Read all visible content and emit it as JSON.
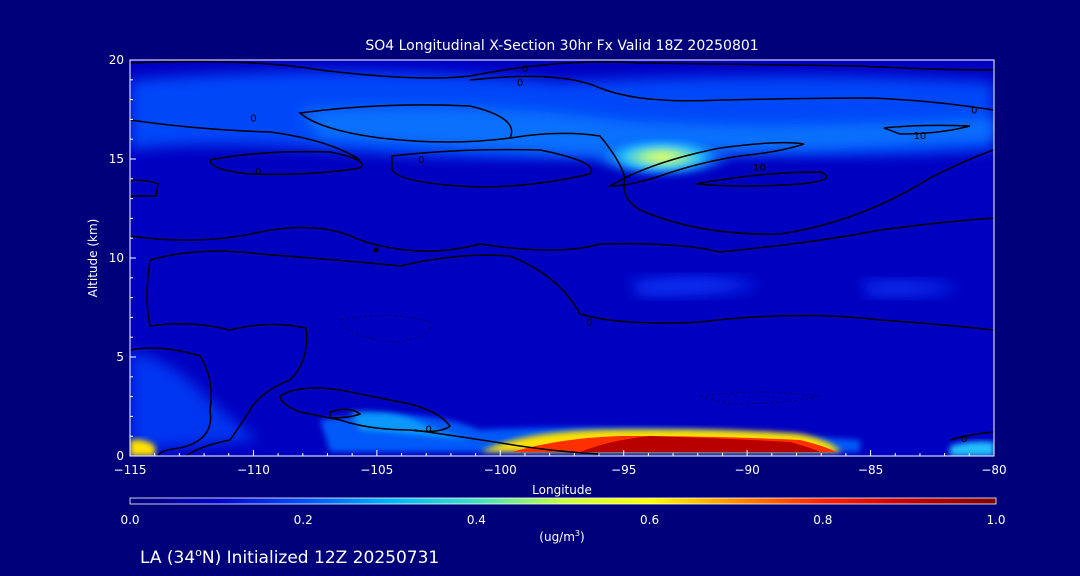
{
  "chart_data": {
    "type": "heatmap",
    "title": "SO4 Longitudinal X-Section 30hr  Fx Valid 18Z 20250801",
    "xlabel": "Longitude",
    "ylabel": "Altitude (km)",
    "xlim": [
      -115,
      -80
    ],
    "ylim": [
      0,
      20
    ],
    "x_ticks": [
      -115,
      -110,
      -105,
      -100,
      -95,
      -90,
      -85,
      -80
    ],
    "x_tick_labels": [
      "−115",
      "−110",
      "−105",
      "−100",
      "−95",
      "−90",
      "−85",
      "−80"
    ],
    "y_ticks": [
      0,
      5,
      10,
      15,
      20
    ],
    "y_tick_labels": [
      "0",
      "5",
      "10",
      "15",
      "20"
    ],
    "colorbar": {
      "label_prefix": "(ug/m",
      "label_exp": "3",
      "label_suffix": ")",
      "range": [
        0.0,
        1.0
      ],
      "ticks": [
        0.0,
        0.2,
        0.4,
        0.6,
        0.8,
        1.0
      ],
      "tick_labels": [
        "0.0",
        "0.2",
        "0.4",
        "0.6",
        "0.8",
        "1.0"
      ],
      "colors": [
        "#00007a",
        "#0000c8",
        "#0050ff",
        "#00b4ff",
        "#40e0c0",
        "#c8ff40",
        "#ffff00",
        "#ff8c00",
        "#ff2000",
        "#c00000",
        "#800000"
      ]
    },
    "contour_labels": [
      {
        "text": "0",
        "lon": -110,
        "alt": 17.1
      },
      {
        "text": "0",
        "lon": -109.8,
        "alt": 14.4
      },
      {
        "text": "0",
        "lon": -103.2,
        "alt": 15
      },
      {
        "text": "0",
        "lon": -99,
        "alt": 19.6
      },
      {
        "text": "0",
        "lon": -99.2,
        "alt": 18.9
      },
      {
        "text": "0",
        "lon": -80.8,
        "alt": 17.5
      },
      {
        "text": "10",
        "lon": -83,
        "alt": 16.2
      },
      {
        "text": "10",
        "lon": -89.5,
        "alt": 14.6
      },
      {
        "text": "0",
        "lon": -96.4,
        "alt": 6.8
      },
      {
        "text": "0",
        "lon": -102.9,
        "alt": 1.4
      },
      {
        "text": "0",
        "lon": -81.2,
        "alt": 0.9
      }
    ],
    "features": [
      {
        "name": "surface-plume",
        "lon_range": [
          -98,
          -87
        ],
        "alt_range": [
          0,
          1
        ],
        "max_value": 1.0
      },
      {
        "name": "upper-maximum",
        "lon_center": -94.5,
        "alt_center": 15,
        "value": 0.6
      }
    ]
  },
  "footer": {
    "init_prefix": "LA (34",
    "init_suffix": "N) Initialized 12Z 20250731"
  }
}
